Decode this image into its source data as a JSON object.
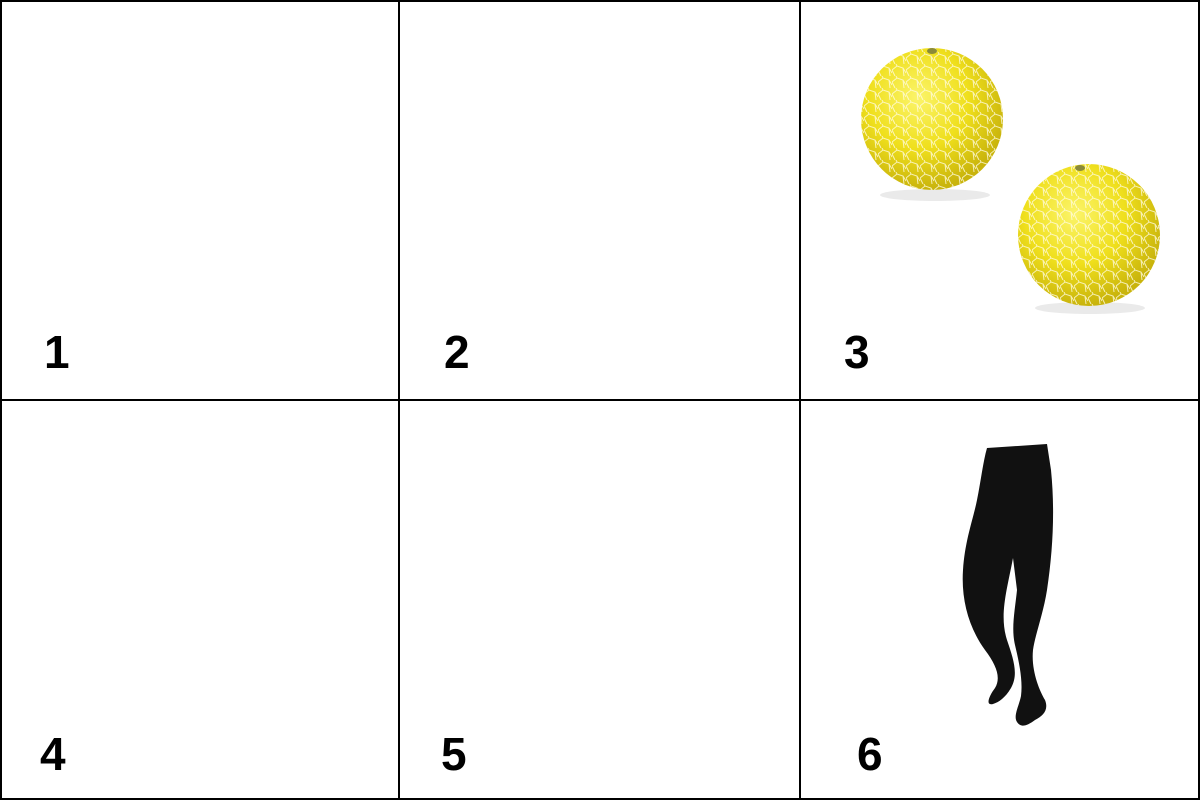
{
  "cells": [
    {
      "label": "1",
      "image": "empty"
    },
    {
      "label": "2",
      "image": "empty"
    },
    {
      "label": "3",
      "image": "two-yellow-melons"
    },
    {
      "label": "4",
      "image": "empty"
    },
    {
      "label": "5",
      "image": "empty"
    },
    {
      "label": "6",
      "image": "black-tights"
    }
  ],
  "colors": {
    "border": "#000000",
    "melon": "#f0e020",
    "tights": "#111111"
  }
}
